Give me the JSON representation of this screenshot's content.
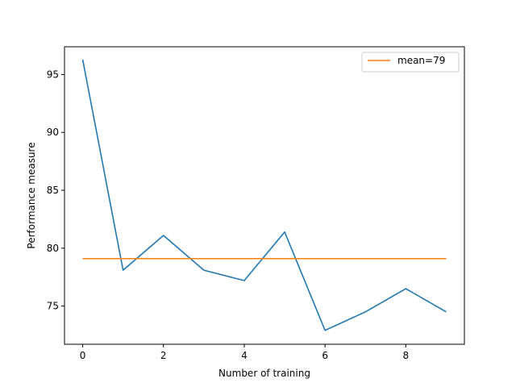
{
  "chart_data": {
    "type": "line",
    "title": "",
    "xlabel": "Number of training",
    "ylabel": "Performance measure",
    "xlim": [
      -0.45,
      9.45
    ],
    "ylim": [
      71.7,
      97.4
    ],
    "xticks": [
      0,
      2,
      4,
      6,
      8
    ],
    "yticks": [
      75,
      80,
      85,
      90,
      95
    ],
    "grid": false,
    "legend_position": "top-right",
    "series": [
      {
        "name": "",
        "color": "#1f77b4",
        "x": [
          0,
          1,
          2,
          3,
          4,
          5,
          6,
          7,
          8,
          9
        ],
        "y": [
          96.3,
          78.1,
          81.1,
          78.1,
          77.2,
          81.4,
          72.9,
          74.5,
          76.5,
          74.5
        ]
      },
      {
        "name": "mean=79",
        "color": "#ff7f0e",
        "x": [
          0,
          9
        ],
        "y": [
          79.1,
          79.1
        ]
      }
    ]
  }
}
